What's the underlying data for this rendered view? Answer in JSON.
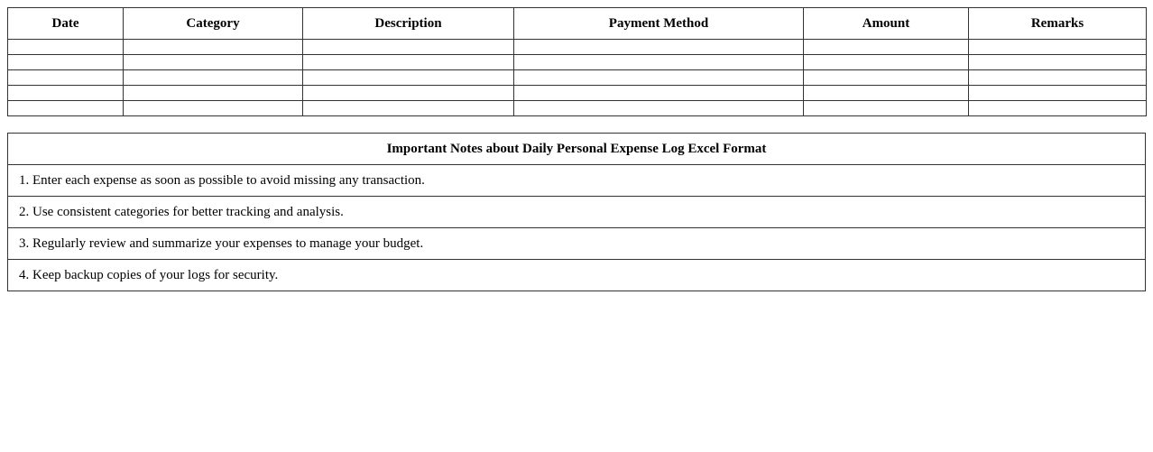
{
  "log_table": {
    "columns": [
      "Date",
      "Category",
      "Description",
      "Payment Method",
      "Amount",
      "Remarks"
    ],
    "empty_rows": 5
  },
  "notes": {
    "title": "Important Notes about Daily Personal Expense Log Excel Format",
    "items": [
      "1. Enter each expense as soon as possible to avoid missing any transaction.",
      "2. Use consistent categories for better tracking and analysis.",
      "3. Regularly review and summarize your expenses to manage your budget.",
      "4. Keep backup copies of your logs for security."
    ]
  }
}
